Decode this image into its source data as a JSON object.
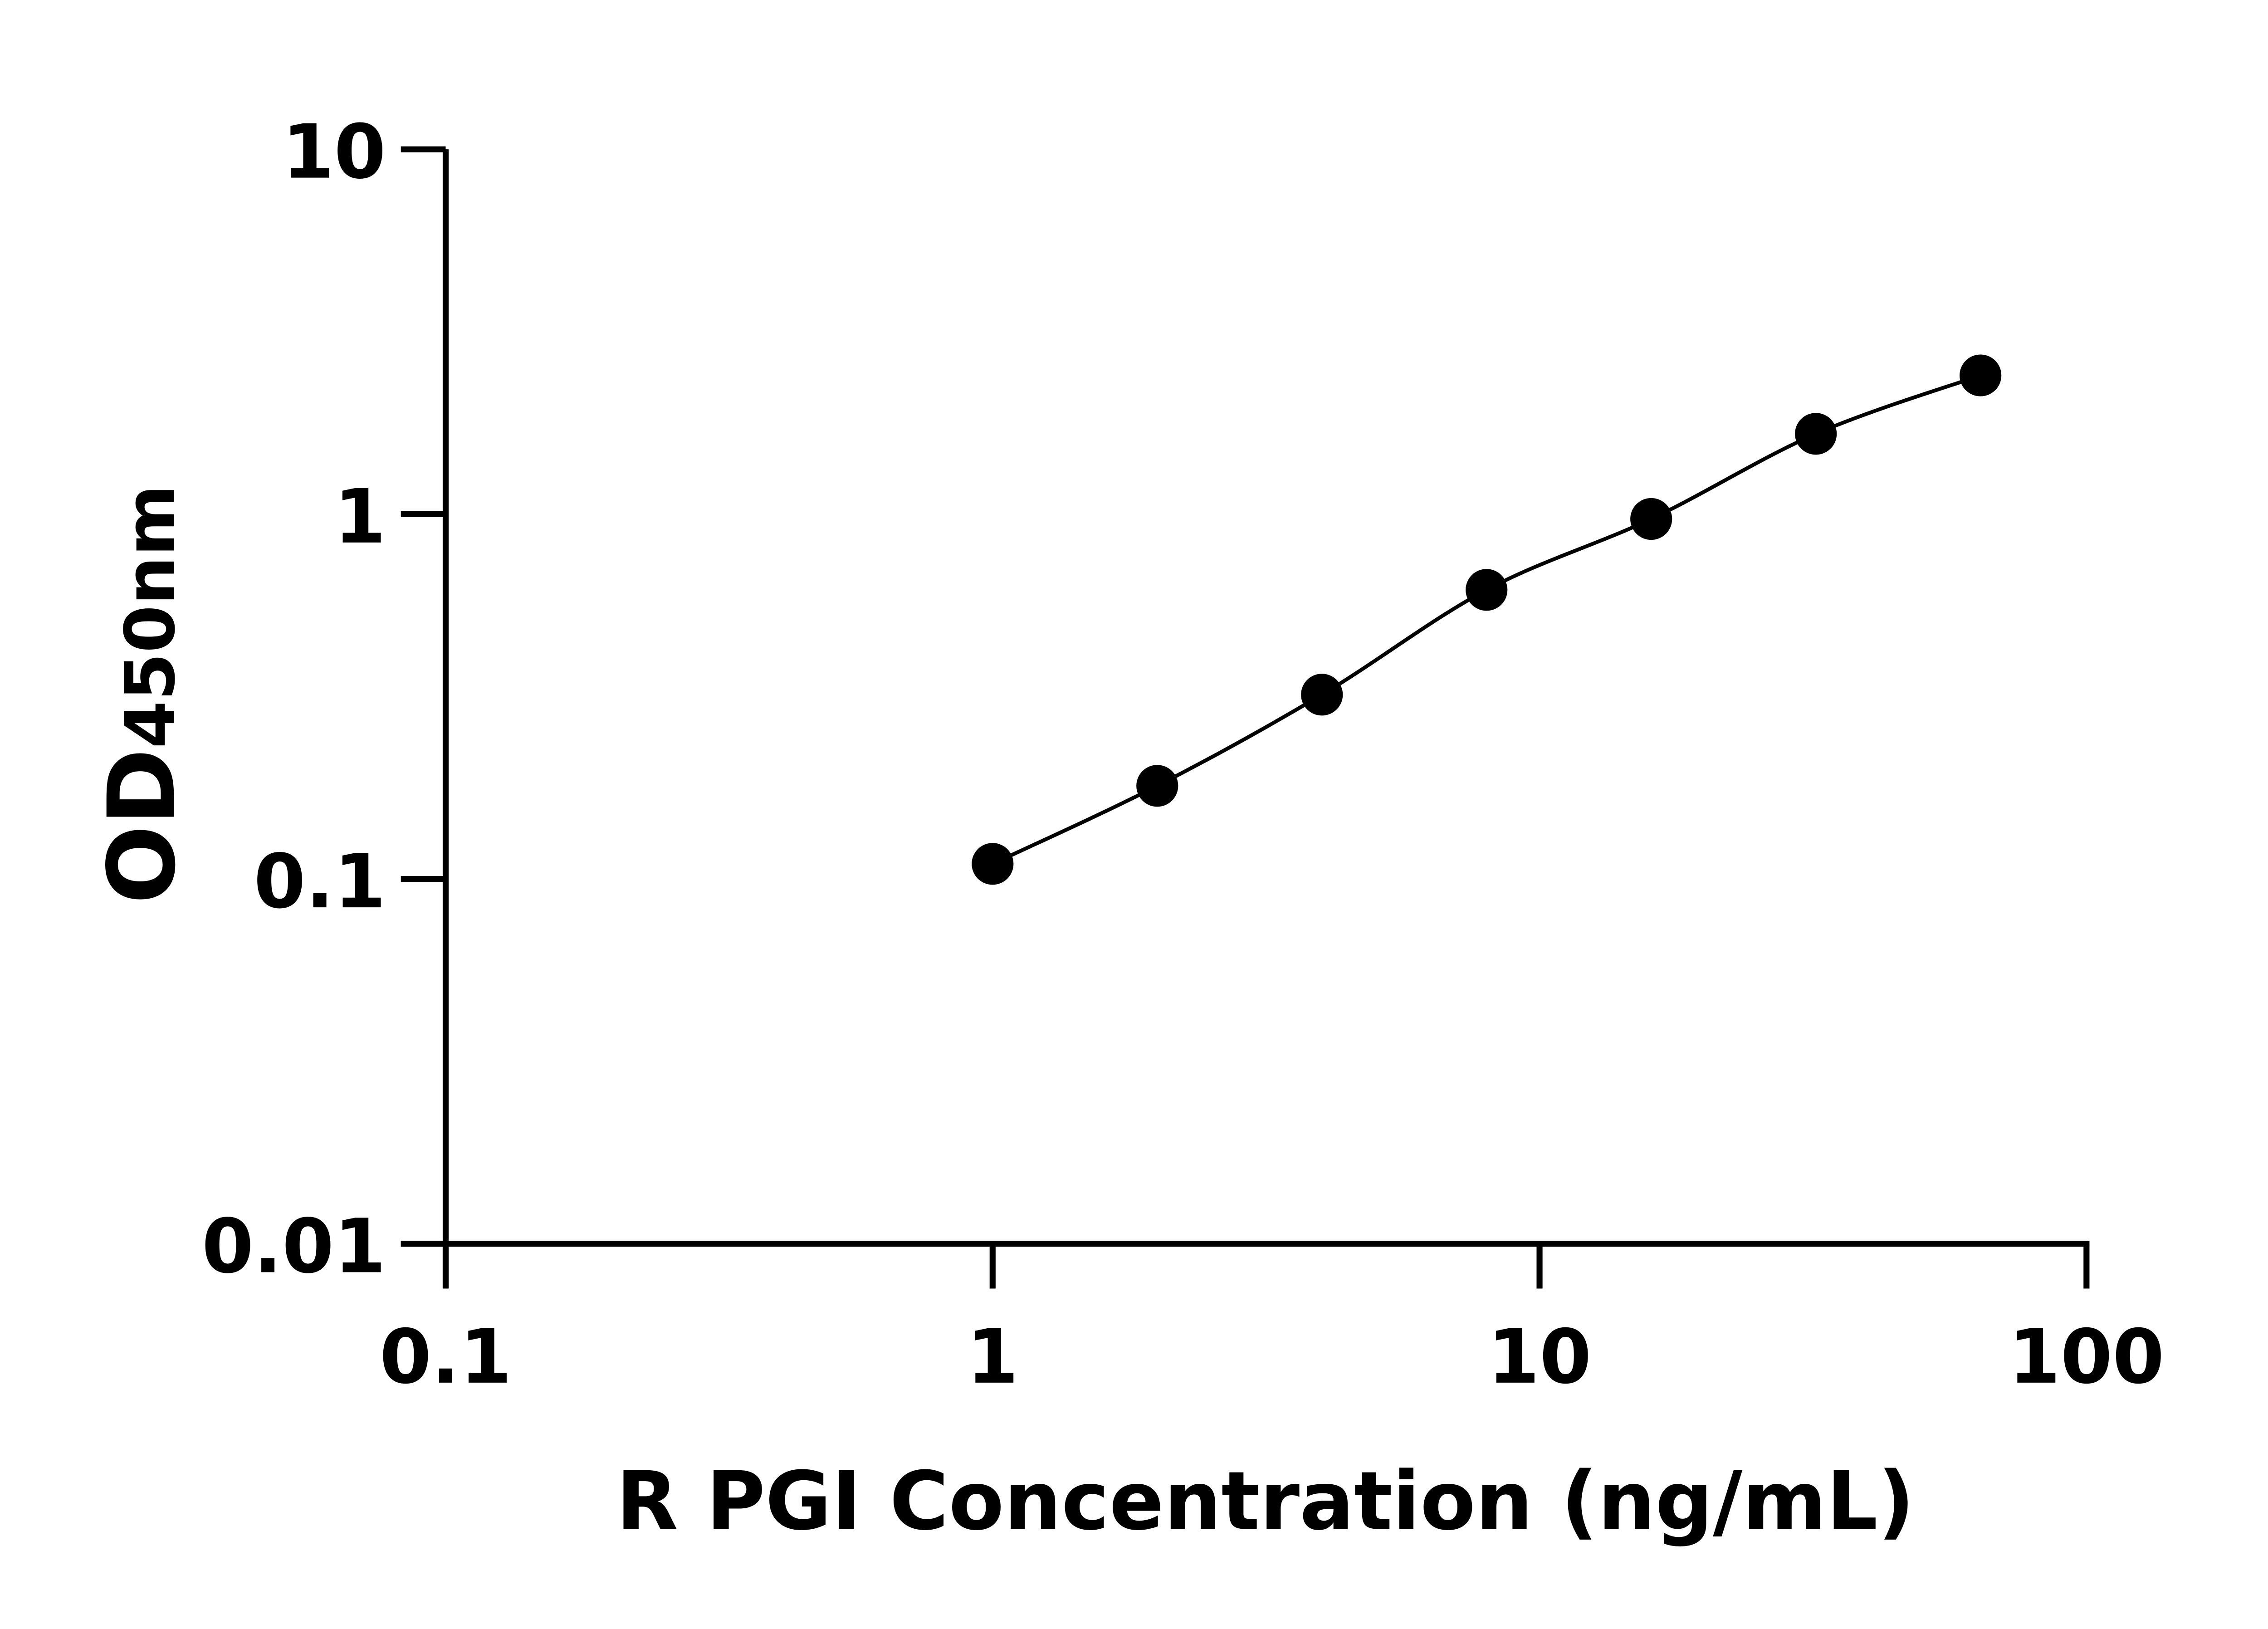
{
  "chart_data": {
    "type": "scatter",
    "xlabel": "R PGI Concentration (ng/mL)",
    "ylabel_main": "OD",
    "ylabel_sub": "450nm",
    "xscale": "log",
    "yscale": "log",
    "xlim": [
      0.1,
      100
    ],
    "ylim": [
      0.01,
      10
    ],
    "xticks": [
      "0.1",
      "1",
      "10",
      "100"
    ],
    "yticks": [
      "0.01",
      "0.1",
      "1",
      "10"
    ],
    "grid": false,
    "fit_curve": true,
    "colors": {
      "marker": "#000000",
      "line": "#000000"
    },
    "series": [
      {
        "x": [
          1,
          2,
          4,
          8,
          16,
          32,
          64
        ],
        "y": [
          0.11,
          0.18,
          0.32,
          0.62,
          0.97,
          1.66,
          2.4
        ]
      }
    ]
  }
}
